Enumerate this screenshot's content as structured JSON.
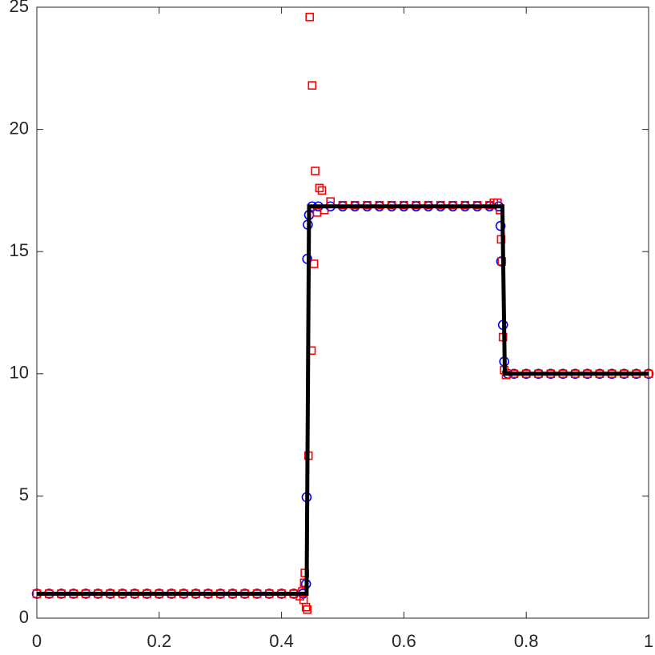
{
  "chart_data": {
    "type": "line",
    "xlim": [
      0,
      1
    ],
    "xticks": [
      0,
      0.2,
      0.4,
      0.6,
      0.8,
      1
    ],
    "ylim": [
      0,
      25
    ],
    "yticks": [
      0,
      5,
      10,
      15,
      20,
      25
    ],
    "grid": false,
    "series": [
      {
        "color": "#0000ff",
        "marker": "circle",
        "line": false,
        "x": [
          0,
          0.02,
          0.04,
          0.06,
          0.08,
          0.1,
          0.12,
          0.14,
          0.16,
          0.18,
          0.2,
          0.22,
          0.24,
          0.26,
          0.28,
          0.3,
          0.32,
          0.34,
          0.36,
          0.38,
          0.4,
          0.42,
          0.435,
          0.44,
          0.441,
          0.442,
          0.443,
          0.445,
          0.45,
          0.46,
          0.48,
          0.5,
          0.52,
          0.54,
          0.56,
          0.58,
          0.6,
          0.62,
          0.64,
          0.66,
          0.68,
          0.7,
          0.72,
          0.74,
          0.755,
          0.758,
          0.759,
          0.762,
          0.764,
          0.77,
          0.78,
          0.8,
          0.82,
          0.84,
          0.86,
          0.88,
          0.9,
          0.92,
          0.94,
          0.96,
          0.98,
          1
        ],
        "values": [
          1,
          1,
          1,
          1,
          1,
          1,
          1,
          1,
          1,
          1,
          1,
          1,
          1,
          1,
          1,
          1,
          1,
          1,
          1,
          1,
          1,
          1,
          1,
          1.4,
          4.95,
          14.7,
          16.1,
          16.5,
          16.85,
          16.85,
          16.85,
          16.85,
          16.85,
          16.85,
          16.85,
          16.85,
          16.85,
          16.85,
          16.85,
          16.85,
          16.85,
          16.85,
          16.85,
          16.85,
          16.85,
          16.05,
          14.6,
          12,
          10.5,
          10,
          10,
          10,
          10,
          10,
          10,
          10,
          10,
          10,
          10,
          10,
          10,
          10
        ]
      },
      {
        "color": "#ff0000",
        "marker": "square",
        "line": false,
        "x": [
          0,
          0.02,
          0.04,
          0.06,
          0.08,
          0.1,
          0.12,
          0.14,
          0.16,
          0.18,
          0.2,
          0.22,
          0.24,
          0.26,
          0.28,
          0.3,
          0.32,
          0.34,
          0.36,
          0.38,
          0.4,
          0.42,
          0.43,
          0.434,
          0.436,
          0.437,
          0.438,
          0.44,
          0.442,
          0.444,
          0.446,
          0.449,
          0.45,
          0.453,
          0.455,
          0.458,
          0.462,
          0.466,
          0.47,
          0.48,
          0.5,
          0.52,
          0.54,
          0.56,
          0.58,
          0.6,
          0.62,
          0.64,
          0.66,
          0.68,
          0.7,
          0.72,
          0.74,
          0.747,
          0.753,
          0.757,
          0.759,
          0.76,
          0.762,
          0.764,
          0.767,
          0.78,
          0.8,
          0.82,
          0.84,
          0.86,
          0.88,
          0.9,
          0.92,
          0.94,
          0.96,
          0.98,
          1
        ],
        "values": [
          1,
          1,
          1,
          1,
          1,
          1,
          1,
          1,
          1,
          1,
          1,
          1,
          1,
          1,
          1,
          1,
          1,
          1,
          1,
          1,
          1,
          1,
          0.9,
          1.1,
          0.75,
          1.45,
          1.85,
          0.45,
          0.35,
          6.65,
          24.6,
          10.95,
          21.8,
          14.5,
          18.3,
          16.6,
          17.6,
          17.5,
          16.7,
          17.05,
          16.9,
          16.9,
          16.9,
          16.9,
          16.9,
          16.9,
          16.9,
          16.9,
          16.9,
          16.9,
          16.9,
          16.9,
          16.9,
          17,
          17,
          16.7,
          15.5,
          14.6,
          11.5,
          10.15,
          9.95,
          10,
          10,
          10,
          10,
          10,
          10,
          10,
          10,
          10,
          10,
          10,
          10
        ]
      },
      {
        "color": "#000000",
        "marker": "none",
        "line": true,
        "x": [
          0,
          0.441,
          0.445,
          0.761,
          0.765,
          1
        ],
        "values": [
          1,
          1,
          16.85,
          16.85,
          10,
          10
        ]
      }
    ]
  }
}
